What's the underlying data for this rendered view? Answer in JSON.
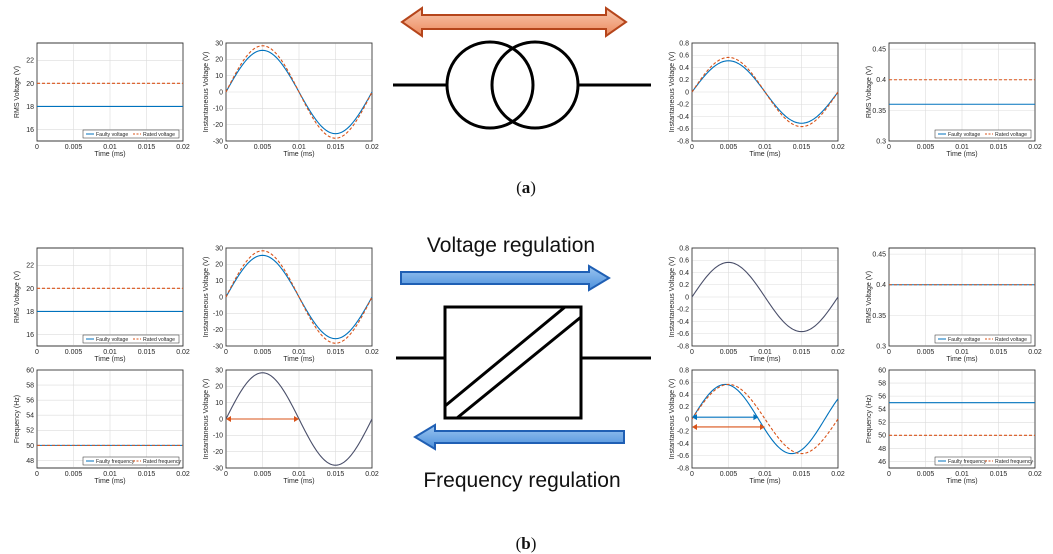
{
  "colors": {
    "faulty": "#0072BD",
    "rated": "#D95319",
    "waveform": "#4a4f6a",
    "arrow_top_fill": "#f4a582",
    "arrow_top_stroke": "#b5451b",
    "arrow_blue_fill": "#6aa5e6",
    "arrow_blue_stroke": "#1f5fb4"
  },
  "captions": {
    "a_letter": "a",
    "b_letter": "b"
  },
  "arrows": {
    "voltage_label": "Voltage regulation",
    "frequency_label": "Frequency regulation"
  },
  "icons": {
    "transformer": "transformer-symbol",
    "converter": "power-converter-symbol"
  },
  "panels": [
    {
      "id": "a-rms-left",
      "type": "line",
      "ylabel": "RMS Voltage (V)",
      "xlabel": "Time (ms)",
      "xlim": [
        0,
        0.02
      ],
      "ylim": [
        15,
        23.5
      ],
      "xticks": [
        0,
        0.005,
        0.01,
        0.015,
        0.02
      ],
      "xtick_labels": [
        "0",
        "0.005",
        "0.01",
        "0.015",
        "0.02"
      ],
      "yticks": [
        16,
        18,
        20,
        22
      ],
      "ytick_labels": [
        "16",
        "18",
        "20",
        "22"
      ],
      "series": [
        {
          "name": "Faulty voltage",
          "kind": "const",
          "value": 18,
          "color": "faulty",
          "dash": false
        },
        {
          "name": "Rated voltage",
          "kind": "const",
          "value": 20,
          "color": "rated",
          "dash": true
        }
      ],
      "legend": [
        "Faulty voltage",
        "Rated voltage"
      ]
    },
    {
      "id": "a-inst-left",
      "type": "line",
      "ylabel": "Instantaneous Voltage (V)",
      "xlabel": "Time (ms)",
      "xlim": [
        0,
        0.02
      ],
      "ylim": [
        -30,
        30
      ],
      "xticks": [
        0,
        0.005,
        0.01,
        0.015,
        0.02
      ],
      "xtick_labels": [
        "0",
        "0.005",
        "0.01",
        "0.015",
        "0.02"
      ],
      "yticks": [
        -30,
        -20,
        -10,
        0,
        10,
        20,
        30
      ],
      "ytick_labels": [
        "-30",
        "-20",
        "-10",
        "0",
        "10",
        "20",
        "30"
      ],
      "series": [
        {
          "kind": "sine",
          "amp": 25.5,
          "period": 0.02,
          "shift": 0,
          "color": "faulty",
          "dash": false
        },
        {
          "kind": "sine",
          "amp": 28.3,
          "period": 0.02,
          "shift": 0,
          "color": "rated",
          "dash": true
        }
      ]
    },
    {
      "id": "a-inst-right",
      "type": "line",
      "ylabel": "Instantaneous Voltage (V)",
      "xlabel": "Time (ms)",
      "xlim": [
        0,
        0.02
      ],
      "ylim": [
        -0.8,
        0.8
      ],
      "xticks": [
        0,
        0.005,
        0.01,
        0.015,
        0.02
      ],
      "xtick_labels": [
        "0",
        "0.005",
        "0.01",
        "0.015",
        "0.02"
      ],
      "yticks": [
        -0.8,
        -0.6,
        -0.4,
        -0.2,
        0,
        0.2,
        0.4,
        0.6,
        0.8
      ],
      "ytick_labels": [
        "-0.8",
        "-0.6",
        "-0.4",
        "-0.2",
        "0",
        "0.2",
        "0.4",
        "0.6",
        "0.8"
      ],
      "series": [
        {
          "kind": "sine",
          "amp": 0.51,
          "period": 0.02,
          "shift": 0,
          "color": "faulty",
          "dash": false
        },
        {
          "kind": "sine",
          "amp": 0.565,
          "period": 0.02,
          "shift": 0,
          "color": "rated",
          "dash": true
        }
      ]
    },
    {
      "id": "a-rms-right",
      "type": "line",
      "ylabel": "RMS Voltage (V)",
      "xlabel": "Time (ms)",
      "xlim": [
        0,
        0.02
      ],
      "ylim": [
        0.3,
        0.46
      ],
      "xticks": [
        0,
        0.005,
        0.01,
        0.015,
        0.02
      ],
      "xtick_labels": [
        "0",
        "0.005",
        "0.01",
        "0.015",
        "0.02"
      ],
      "yticks": [
        0.3,
        0.35,
        0.4,
        0.45
      ],
      "ytick_labels": [
        "0.3",
        "0.35",
        "0.4",
        "0.45"
      ],
      "series": [
        {
          "name": "Faulty voltage",
          "kind": "const",
          "value": 0.36,
          "color": "faulty",
          "dash": false
        },
        {
          "name": "Rated voltage",
          "kind": "const",
          "value": 0.4,
          "color": "rated",
          "dash": true
        }
      ],
      "legend": [
        "Faulty voltage",
        "Rated voltage"
      ]
    },
    {
      "id": "b-rms-left",
      "type": "line",
      "ylabel": "RMS Voltage (V)",
      "xlabel": "Time (ms)",
      "xlim": [
        0,
        0.02
      ],
      "ylim": [
        15,
        23.5
      ],
      "xticks": [
        0,
        0.005,
        0.01,
        0.015,
        0.02
      ],
      "xtick_labels": [
        "0",
        "0.005",
        "0.01",
        "0.015",
        "0.02"
      ],
      "yticks": [
        16,
        18,
        20,
        22
      ],
      "ytick_labels": [
        "16",
        "18",
        "20",
        "22"
      ],
      "series": [
        {
          "name": "Faulty voltage",
          "kind": "const",
          "value": 18,
          "color": "faulty",
          "dash": false
        },
        {
          "name": "Rated voltage",
          "kind": "const",
          "value": 20,
          "color": "rated",
          "dash": true
        }
      ],
      "legend": [
        "Faulty voltage",
        "Rated voltage"
      ]
    },
    {
      "id": "b-inst-left",
      "type": "line",
      "ylabel": "Instantaneous Voltage (V)",
      "xlabel": "Time (ms)",
      "xlim": [
        0,
        0.02
      ],
      "ylim": [
        -30,
        30
      ],
      "xticks": [
        0,
        0.005,
        0.01,
        0.015,
        0.02
      ],
      "xtick_labels": [
        "0",
        "0.005",
        "0.01",
        "0.015",
        "0.02"
      ],
      "yticks": [
        -30,
        -20,
        -10,
        0,
        10,
        20,
        30
      ],
      "ytick_labels": [
        "-30",
        "-20",
        "-10",
        "0",
        "10",
        "20",
        "30"
      ],
      "series": [
        {
          "kind": "sine",
          "amp": 25.5,
          "period": 0.02,
          "shift": 0,
          "color": "faulty",
          "dash": false
        },
        {
          "kind": "sine",
          "amp": 28.3,
          "period": 0.02,
          "shift": 0,
          "color": "rated",
          "dash": true
        }
      ]
    },
    {
      "id": "b-inst-right-top",
      "type": "line",
      "ylabel": "Instantaneous Voltage (V)",
      "xlabel": "Time (ms)",
      "xlim": [
        0,
        0.02
      ],
      "ylim": [
        -0.8,
        0.8
      ],
      "xticks": [
        0,
        0.005,
        0.01,
        0.015,
        0.02
      ],
      "xtick_labels": [
        "0",
        "0.005",
        "0.01",
        "0.015",
        "0.02"
      ],
      "yticks": [
        -0.8,
        -0.6,
        -0.4,
        -0.2,
        0,
        0.2,
        0.4,
        0.6,
        0.8
      ],
      "ytick_labels": [
        "-0.8",
        "-0.6",
        "-0.4",
        "-0.2",
        "0",
        "0.2",
        "0.4",
        "0.6",
        "0.8"
      ],
      "series": [
        {
          "kind": "sine",
          "amp": 0.565,
          "period": 0.02,
          "shift": 0,
          "color": "waveform",
          "dash": false
        }
      ]
    },
    {
      "id": "b-rms-right",
      "type": "line",
      "ylabel": "RMS Voltage (V)",
      "xlabel": "Time (ms)",
      "xlim": [
        0,
        0.02
      ],
      "ylim": [
        0.3,
        0.46
      ],
      "xticks": [
        0,
        0.005,
        0.01,
        0.015,
        0.02
      ],
      "xtick_labels": [
        "0",
        "0.005",
        "0.01",
        "0.015",
        "0.02"
      ],
      "yticks": [
        0.3,
        0.35,
        0.4,
        0.45
      ],
      "ytick_labels": [
        "0.3",
        "0.35",
        "0.4",
        "0.45"
      ],
      "series": [
        {
          "name": "Faulty voltage",
          "kind": "const",
          "value": 0.4,
          "color": "faulty",
          "dash": false
        },
        {
          "name": "Rated voltage",
          "kind": "const",
          "value": 0.4,
          "color": "rated",
          "dash": true
        }
      ],
      "legend": [
        "Faulty voltage",
        "Rated voltage"
      ]
    },
    {
      "id": "b-freq-left",
      "type": "line",
      "ylabel": "Frequency (Hz)",
      "xlabel": "Time (ms)",
      "xlim": [
        0,
        0.02
      ],
      "ylim": [
        47,
        60
      ],
      "xticks": [
        0,
        0.005,
        0.01,
        0.015,
        0.02
      ],
      "xtick_labels": [
        "0",
        "0.005",
        "0.01",
        "0.015",
        "0.02"
      ],
      "yticks": [
        48,
        50,
        52,
        54,
        56,
        58,
        60
      ],
      "ytick_labels": [
        "48",
        "50",
        "52",
        "54",
        "56",
        "58",
        "60"
      ],
      "series": [
        {
          "name": "Faulty frequency",
          "kind": "const",
          "value": 50,
          "color": "faulty",
          "dash": false
        },
        {
          "name": "Rated frequency",
          "kind": "const",
          "value": 50,
          "color": "rated",
          "dash": true
        }
      ],
      "legend": [
        "Faulty frequency",
        "Rated frequency"
      ]
    },
    {
      "id": "b-inst-left-bottom",
      "type": "line",
      "ylabel": "Instantaneous Voltage (V)",
      "xlabel": "Time (ms)",
      "xlim": [
        0,
        0.02
      ],
      "ylim": [
        -30,
        30
      ],
      "xticks": [
        0,
        0.005,
        0.01,
        0.015,
        0.02
      ],
      "xtick_labels": [
        "0",
        "0.005",
        "0.01",
        "0.015",
        "0.02"
      ],
      "yticks": [
        -30,
        -20,
        -10,
        0,
        10,
        20,
        30
      ],
      "ytick_labels": [
        "-30",
        "-20",
        "-10",
        "0",
        "10",
        "20",
        "30"
      ],
      "series": [
        {
          "kind": "sine",
          "amp": 28.3,
          "period": 0.02,
          "shift": 0,
          "color": "waveform",
          "dash": false
        }
      ],
      "arrows": [
        {
          "x0": 0,
          "x1": 0.01,
          "y": 0,
          "color": "rated"
        }
      ]
    },
    {
      "id": "b-inst-right-bottom",
      "type": "line",
      "ylabel": "Instantaneous Voltage (V)",
      "xlabel": "Time (ms)",
      "xlim": [
        0,
        0.02
      ],
      "ylim": [
        -0.8,
        0.8
      ],
      "xticks": [
        0,
        0.005,
        0.01,
        0.015,
        0.02
      ],
      "xtick_labels": [
        "0",
        "0.005",
        "0.01",
        "0.015",
        "0.02"
      ],
      "yticks": [
        -0.8,
        -0.6,
        -0.4,
        -0.2,
        0,
        0.2,
        0.4,
        0.6,
        0.8
      ],
      "ytick_labels": [
        "-0.8",
        "-0.6",
        "-0.4",
        "-0.2",
        "0",
        "0.2",
        "0.4",
        "0.6",
        "0.8"
      ],
      "series": [
        {
          "kind": "sine",
          "amp": 0.565,
          "period": 0.0182,
          "shift": 0,
          "color": "faulty",
          "dash": false
        },
        {
          "kind": "sine",
          "amp": 0.565,
          "period": 0.02,
          "shift": 0,
          "color": "rated",
          "dash": true
        }
      ],
      "arrows": [
        {
          "x0": 0,
          "x1": 0.0091,
          "y": 0.03,
          "color": "faulty"
        },
        {
          "x0": 0,
          "x1": 0.01,
          "y": -0.13,
          "color": "rated"
        }
      ]
    },
    {
      "id": "b-freq-right",
      "type": "line",
      "ylabel": "Frequency (Hz)",
      "xlabel": "Time (ms)",
      "xlim": [
        0,
        0.02
      ],
      "ylim": [
        45,
        60
      ],
      "xticks": [
        0,
        0.005,
        0.01,
        0.015,
        0.02
      ],
      "xtick_labels": [
        "0",
        "0.005",
        "0.01",
        "0.015",
        "0.02"
      ],
      "yticks": [
        46,
        48,
        50,
        52,
        54,
        56,
        58,
        60
      ],
      "ytick_labels": [
        "46",
        "48",
        "50",
        "52",
        "54",
        "56",
        "58",
        "60"
      ],
      "series": [
        {
          "name": "Faulty frequency",
          "kind": "const",
          "value": 55,
          "color": "faulty",
          "dash": false
        },
        {
          "name": "Rated frequency",
          "kind": "const",
          "value": 50,
          "color": "rated",
          "dash": true
        }
      ],
      "legend": [
        "Faulty frequency",
        "Rated frequency"
      ]
    }
  ]
}
